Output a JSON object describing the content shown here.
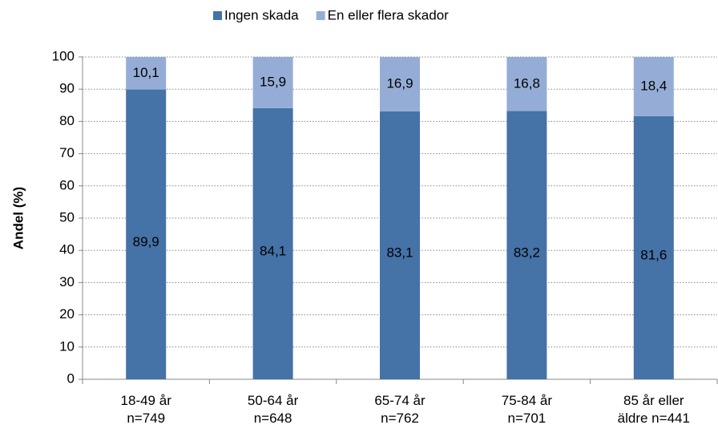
{
  "chart_data": {
    "type": "stacked_bar",
    "y_label": "Andel (%)",
    "categories": [
      "18-49 år\nn=749",
      "50-64 år\nn=648",
      "65-74 år\nn=762",
      "75-84 år\nn=701",
      "85 år eller\näldre n=441"
    ],
    "series": [
      {
        "name": "Ingen skada",
        "color": "#4572a7",
        "values": [
          89.9,
          84.1,
          83.1,
          83.2,
          81.6
        ],
        "value_labels": [
          "89,9",
          "84,1",
          "83,1",
          "83,2",
          "81,6"
        ]
      },
      {
        "name": "En eller flera skador",
        "color": "#95add6",
        "values": [
          10.1,
          15.9,
          16.9,
          16.8,
          18.4
        ],
        "value_labels": [
          "10,1",
          "15,9",
          "16,9",
          "16,8",
          "18,4"
        ]
      }
    ],
    "ylim": [
      0,
      100
    ],
    "yticks": [
      0,
      10,
      20,
      30,
      40,
      50,
      60,
      70,
      80,
      90,
      100
    ],
    "grid": true,
    "legend": "top"
  }
}
